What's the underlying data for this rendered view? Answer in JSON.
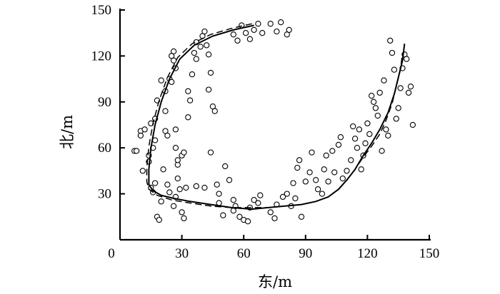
{
  "chart_data": {
    "type": "scatter",
    "xlabel": "东/m",
    "ylabel": "北/m",
    "xlim": [
      0,
      150
    ],
    "ylim": [
      0,
      150
    ],
    "xticks": [
      0,
      30,
      60,
      90,
      120,
      150
    ],
    "yticks": [
      30,
      60,
      90,
      120,
      150
    ],
    "grid": false,
    "legend": "none",
    "points": [
      [
        7,
        58
      ],
      [
        10,
        71
      ],
      [
        10,
        68
      ],
      [
        11,
        45
      ],
      [
        14,
        51
      ],
      [
        14,
        55
      ],
      [
        15,
        34
      ],
      [
        16,
        31
      ],
      [
        17,
        37
      ],
      [
        16,
        60
      ],
      [
        17,
        65
      ],
      [
        15,
        76
      ],
      [
        17,
        79
      ],
      [
        18,
        91
      ],
      [
        18,
        15
      ],
      [
        19,
        13
      ],
      [
        20,
        25
      ],
      [
        21,
        46
      ],
      [
        22,
        71
      ],
      [
        22,
        84
      ],
      [
        23,
        68
      ],
      [
        22,
        97
      ],
      [
        24,
        105
      ],
      [
        25,
        103
      ],
      [
        25,
        120
      ],
      [
        26,
        123
      ],
      [
        26,
        117
      ],
      [
        27,
        112
      ],
      [
        27,
        72
      ],
      [
        27,
        60
      ],
      [
        28,
        49
      ],
      [
        28,
        40
      ],
      [
        29,
        33
      ],
      [
        27,
        28
      ],
      [
        26,
        22
      ],
      [
        30,
        18
      ],
      [
        31,
        14
      ],
      [
        28,
        52
      ],
      [
        30,
        55
      ],
      [
        31,
        57
      ],
      [
        32,
        34
      ],
      [
        33,
        97
      ],
      [
        34,
        91
      ],
      [
        35,
        108
      ],
      [
        36,
        122
      ],
      [
        37,
        118
      ],
      [
        37,
        129
      ],
      [
        39,
        126
      ],
      [
        40,
        133
      ],
      [
        41,
        136
      ],
      [
        42,
        127
      ],
      [
        43,
        121
      ],
      [
        43,
        98
      ],
      [
        44,
        109
      ],
      [
        45,
        87
      ],
      [
        46,
        84
      ],
      [
        47,
        36
      ],
      [
        48,
        30
      ],
      [
        48,
        24
      ],
      [
        50,
        16
      ],
      [
        51,
        48
      ],
      [
        53,
        39
      ],
      [
        55,
        26
      ],
      [
        55,
        19
      ],
      [
        56,
        22
      ],
      [
        58,
        15
      ],
      [
        60,
        13
      ],
      [
        62,
        12
      ],
      [
        63,
        21
      ],
      [
        65,
        26
      ],
      [
        67,
        24
      ],
      [
        68,
        29
      ],
      [
        55,
        134
      ],
      [
        57,
        130
      ],
      [
        59,
        140
      ],
      [
        61,
        135
      ],
      [
        63,
        131
      ],
      [
        65,
        137
      ],
      [
        67,
        141
      ],
      [
        69,
        135
      ],
      [
        73,
        141
      ],
      [
        76,
        136
      ],
      [
        78,
        142
      ],
      [
        81,
        134
      ],
      [
        82,
        137
      ],
      [
        73,
        18
      ],
      [
        75,
        14
      ],
      [
        76,
        23
      ],
      [
        79,
        28
      ],
      [
        81,
        30
      ],
      [
        84,
        37
      ],
      [
        86,
        47
      ],
      [
        87,
        52
      ],
      [
        90,
        38
      ],
      [
        92,
        44
      ],
      [
        93,
        57
      ],
      [
        95,
        39
      ],
      [
        96,
        33
      ],
      [
        98,
        30
      ],
      [
        99,
        46
      ],
      [
        100,
        55
      ],
      [
        101,
        38
      ],
      [
        103,
        58
      ],
      [
        104,
        44
      ],
      [
        106,
        62
      ],
      [
        107,
        67
      ],
      [
        108,
        40
      ],
      [
        110,
        45
      ],
      [
        112,
        52
      ],
      [
        113,
        74
      ],
      [
        114,
        66
      ],
      [
        115,
        60
      ],
      [
        116,
        72
      ],
      [
        117,
        46
      ],
      [
        118,
        55
      ],
      [
        119,
        63
      ],
      [
        120,
        76
      ],
      [
        121,
        69
      ],
      [
        122,
        94
      ],
      [
        123,
        90
      ],
      [
        124,
        86
      ],
      [
        125,
        81
      ],
      [
        126,
        96
      ],
      [
        127,
        58
      ],
      [
        128,
        104
      ],
      [
        129,
        72
      ],
      [
        130,
        68
      ],
      [
        131,
        130
      ],
      [
        132,
        122
      ],
      [
        133,
        111
      ],
      [
        134,
        79
      ],
      [
        135,
        86
      ],
      [
        136,
        99
      ],
      [
        137,
        112
      ],
      [
        138,
        121
      ],
      [
        139,
        118
      ],
      [
        140,
        96
      ],
      [
        141,
        100
      ],
      [
        142,
        75
      ],
      [
        41,
        34
      ],
      [
        44,
        57
      ],
      [
        37,
        35
      ],
      [
        8,
        58
      ],
      [
        20,
        104
      ],
      [
        23,
        36
      ],
      [
        24,
        31
      ],
      [
        12,
        72
      ],
      [
        83,
        22
      ],
      [
        85,
        27
      ],
      [
        88,
        15
      ],
      [
        33,
        80
      ]
    ],
    "series": [
      {
        "style": "solid",
        "x": [
          65,
          55,
          45,
          36,
          29,
          24,
          20,
          17,
          15,
          14,
          14,
          16,
          20,
          26,
          34,
          44,
          54,
          64,
          72,
          80,
          88,
          95,
          101,
          106,
          110,
          114,
          118,
          122,
          126,
          130,
          133,
          135,
          137,
          138
        ],
        "y": [
          140,
          137,
          133,
          127,
          118,
          105,
          90,
          75,
          60,
          46,
          36,
          32,
          29,
          27,
          25,
          23,
          21,
          20,
          21,
          22,
          23,
          25,
          28,
          33,
          39,
          46,
          55,
          63,
          72,
          83,
          95,
          106,
          117,
          128
        ]
      },
      {
        "style": "dashed",
        "x": [
          64,
          54,
          44,
          35,
          28,
          23,
          19,
          16,
          14,
          13,
          13,
          14,
          18,
          25,
          34,
          44,
          54,
          64,
          72,
          80,
          88,
          95,
          101,
          106,
          110,
          114,
          118,
          122,
          126,
          129,
          132,
          134,
          136,
          137
        ],
        "y": [
          141,
          138,
          134,
          128,
          119,
          106,
          91,
          76,
          61,
          47,
          38,
          33,
          29,
          26,
          24,
          22,
          21,
          21,
          21,
          22,
          23,
          25,
          28,
          33,
          39,
          46,
          54,
          61,
          69,
          78,
          89,
          100,
          111,
          122
        ]
      }
    ]
  }
}
